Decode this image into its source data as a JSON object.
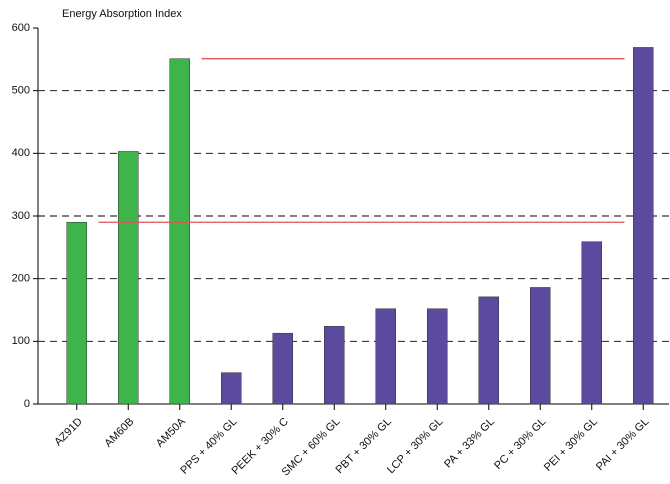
{
  "chart_data": {
    "type": "bar",
    "y_label": "Energy Absorption Index",
    "categories": [
      "AZ91D",
      "AM60B",
      "AM50A",
      "PPS + 40% GL",
      "PEEK + 30% C",
      "SMC + 60% GL",
      "PBT + 30% GL",
      "LCP + 30% GL",
      "PA + 33% GL",
      "PC + 30% GL",
      "PEI + 30% GL",
      "PAI + 30% GL"
    ],
    "values": [
      290,
      403,
      551,
      50,
      113,
      124,
      152,
      152,
      171,
      186,
      259,
      569
    ],
    "colors": [
      "#3db54a",
      "#3db54a",
      "#3db54a",
      "#5c4a9e",
      "#5c4a9e",
      "#5c4a9e",
      "#5c4a9e",
      "#5c4a9e",
      "#5c4a9e",
      "#5c4a9e",
      "#5c4a9e",
      "#5c4a9e"
    ],
    "ylim": [
      0,
      600
    ],
    "yticks": [
      0,
      100,
      200,
      300,
      400,
      500,
      600
    ],
    "grid": true,
    "reference_lines": [
      {
        "value": 290,
        "from": "AM60B",
        "to": "PEI + 30% GL",
        "color": "#e05555"
      },
      {
        "value": 551,
        "from": "PPS + 40% GL",
        "to": "PEI + 30% GL",
        "color": "#e05555"
      }
    ]
  }
}
